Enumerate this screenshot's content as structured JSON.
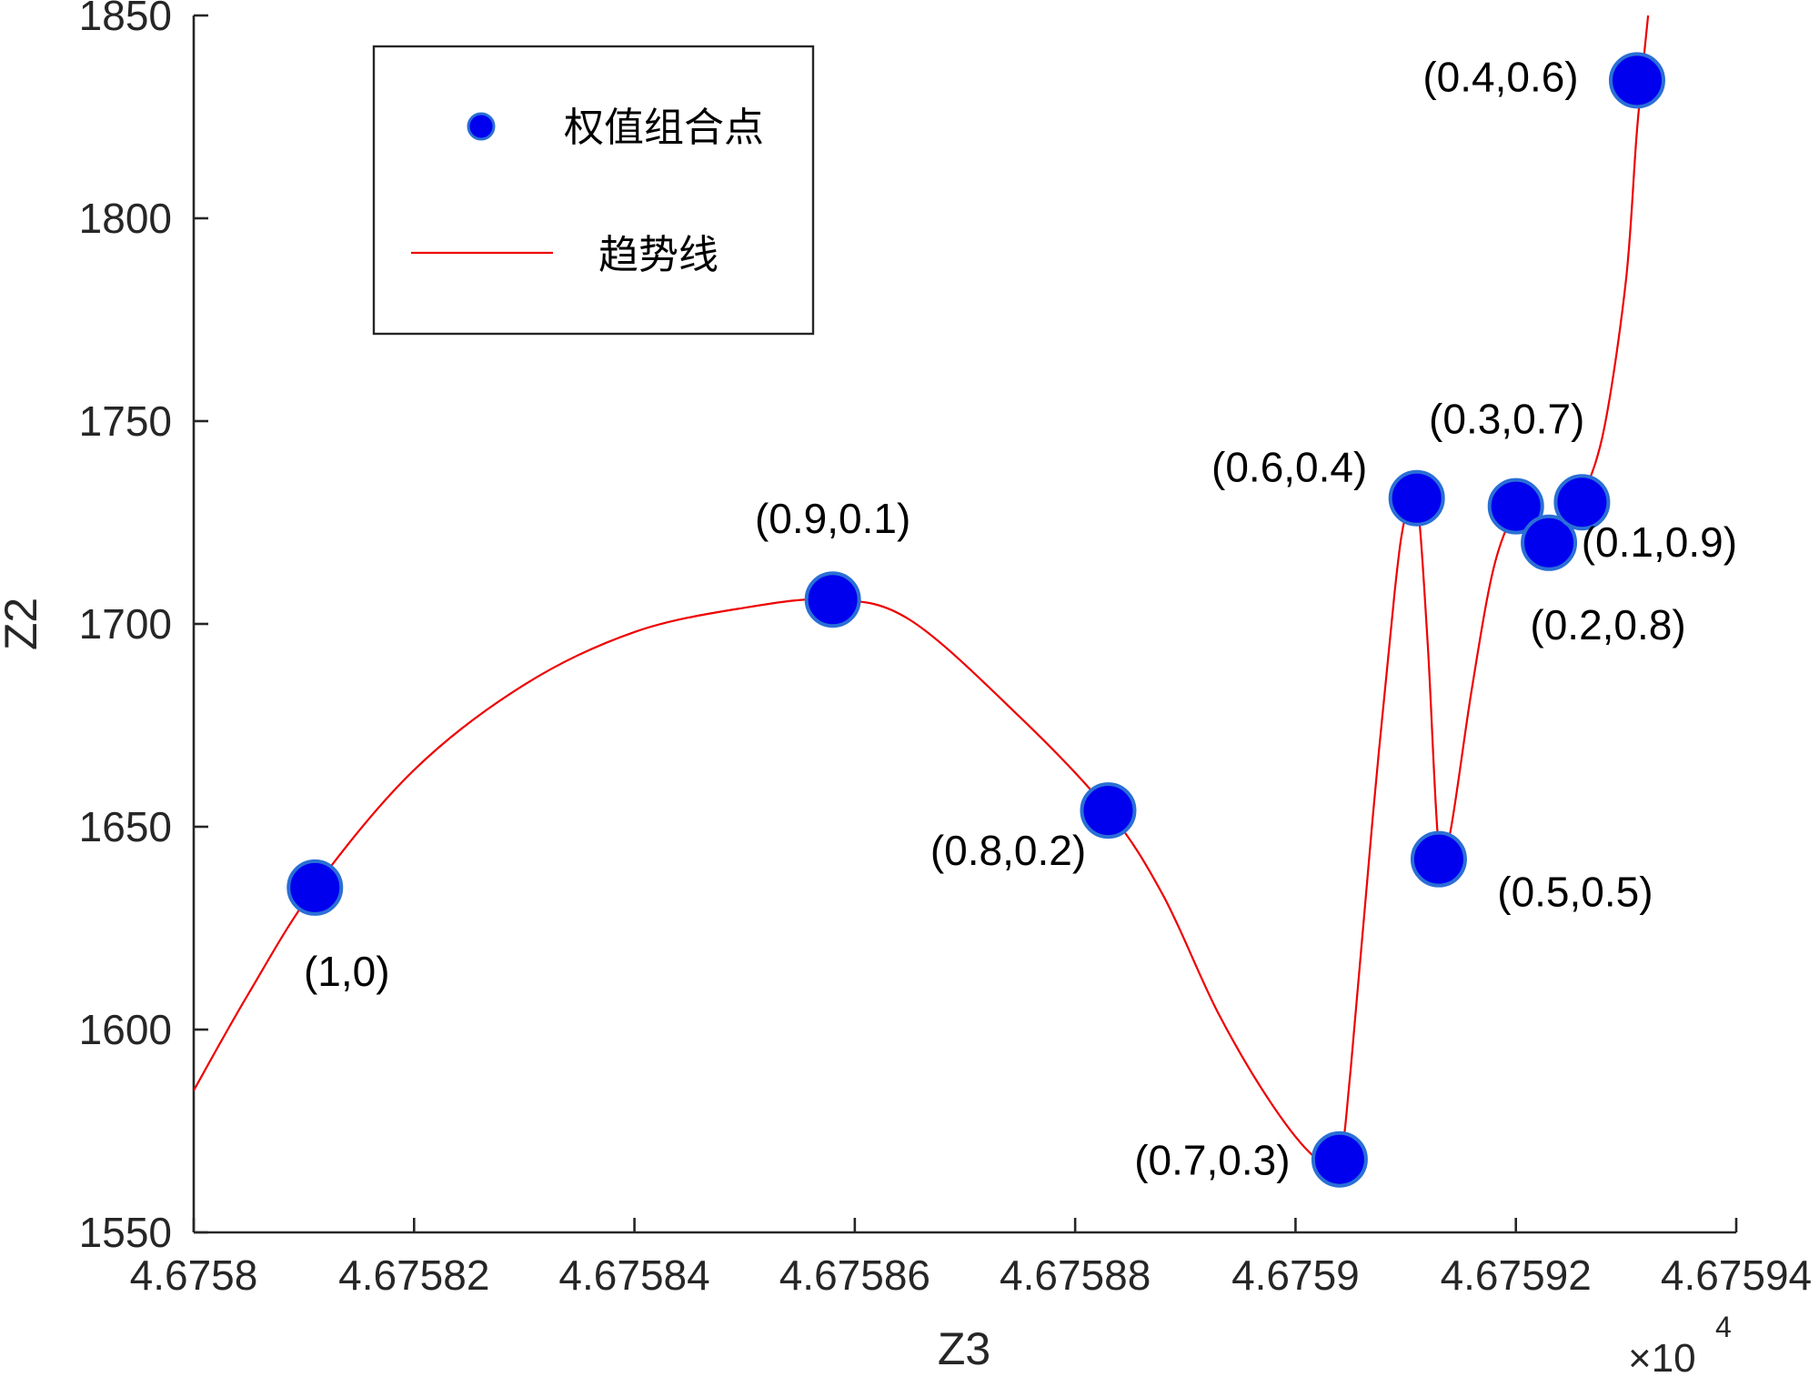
{
  "chart_data": {
    "type": "scatter",
    "xlabel": "Z3",
    "ylabel": "Z2",
    "x_scale_label": {
      "base": "×10",
      "exponent": "4"
    },
    "xlim": [
      46758,
      46759.4
    ],
    "ylim": [
      1550,
      1850
    ],
    "x_tick_values": [
      46758,
      46758.2,
      46758.4,
      46758.6,
      46758.8,
      46759,
      46759.2,
      46759.4
    ],
    "x_tick_labels": [
      "4.6758",
      "4.67582",
      "4.67584",
      "4.67586",
      "4.67588",
      "4.6759",
      "4.67592",
      "4.67594"
    ],
    "y_tick_values": [
      1550,
      1600,
      1650,
      1700,
      1750,
      1800,
      1850
    ],
    "y_tick_labels": [
      "1550",
      "1600",
      "1650",
      "1700",
      "1750",
      "1800",
      "1850"
    ],
    "legend": {
      "placement": "top-left",
      "entries": [
        {
          "label": "权值组合点",
          "marker": "circle"
        },
        {
          "label": "趋势线",
          "marker": "line"
        }
      ]
    },
    "grid": false,
    "colors": {
      "points": "#0000ee",
      "point_edge": "#2a6fd6",
      "trend": "#ee0000",
      "axis": "#262626"
    },
    "series": [
      {
        "name": "权值组合点",
        "points": [
          {
            "x": 46758.11,
            "y": 1635,
            "label": "(1,0)"
          },
          {
            "x": 46758.58,
            "y": 1706,
            "label": "(0.9,0.1)"
          },
          {
            "x": 46758.83,
            "y": 1654,
            "label": "(0.8,0.2)"
          },
          {
            "x": 46759.04,
            "y": 1568,
            "label": "(0.7,0.3)"
          },
          {
            "x": 46759.11,
            "y": 1731,
            "label": "(0.6,0.4)"
          },
          {
            "x": 46759.13,
            "y": 1642,
            "label": "(0.5,0.5)"
          },
          {
            "x": 46759.31,
            "y": 1834,
            "label": "(0.4,0.6)"
          },
          {
            "x": 46759.2,
            "y": 1729,
            "label": "(0.3,0.7)"
          },
          {
            "x": 46759.23,
            "y": 1720,
            "label": "(0.2,0.8)"
          },
          {
            "x": 46759.26,
            "y": 1730,
            "label": "(0.1,0.9)"
          }
        ]
      },
      {
        "name": "趋势线",
        "type": "line",
        "x": [
          46758.0,
          46758.05,
          46758.11,
          46758.2,
          46758.3,
          46758.4,
          46758.5,
          46758.58,
          46758.65,
          46758.75,
          46758.83,
          46758.88,
          46758.93,
          46758.98,
          46759.02,
          46759.04,
          46759.05,
          46759.07,
          46759.09,
          46759.1,
          46759.11,
          46759.12,
          46759.13,
          46759.14,
          46759.16,
          46759.18,
          46759.2,
          46759.21,
          46759.22,
          46759.23,
          46759.24,
          46759.25,
          46759.26,
          46759.28,
          46759.3,
          46759.31,
          46759.32
        ],
        "y": [
          1585,
          1609,
          1635,
          1664,
          1685,
          1698,
          1704,
          1706,
          1701,
          1677,
          1654,
          1633,
          1604,
          1581,
          1568,
          1569,
          1590,
          1652,
          1708,
          1727,
          1731,
          1695,
          1645,
          1648,
          1684,
          1714,
          1728,
          1726,
          1722,
          1720,
          1722,
          1727,
          1731,
          1748,
          1785,
          1822,
          1850
        ]
      }
    ]
  }
}
